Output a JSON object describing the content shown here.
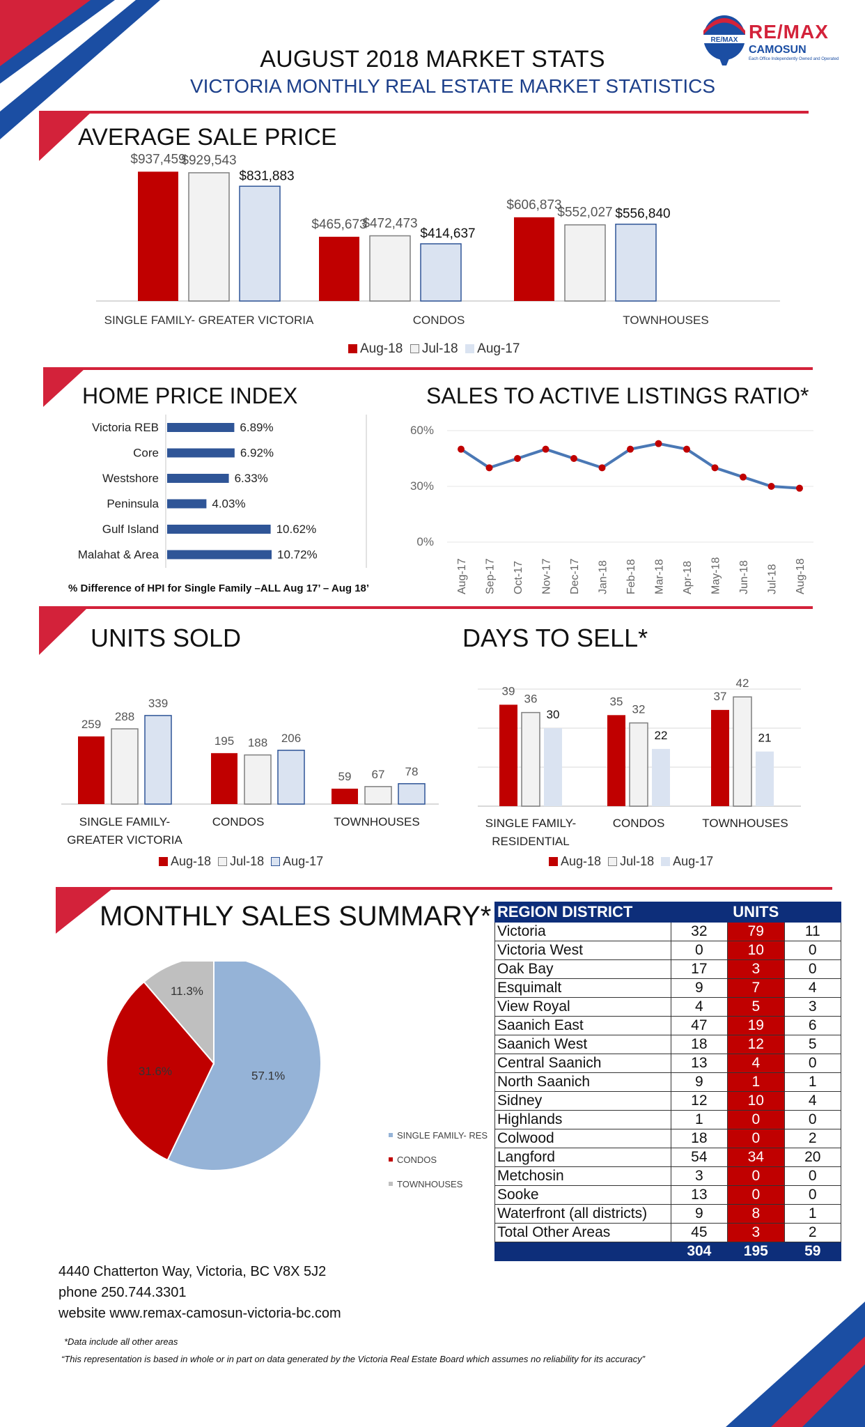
{
  "header": {
    "title": "AUGUST 2018 MARKET STATS",
    "subtitle": "VICTORIA MONTHLY REAL ESTATE MARKET STATISTICS",
    "logo_text": "RE/MAX",
    "logo_brand": "RE/MAX",
    "logo_sub": "CAMOSUN",
    "logo_tag": "Each Office Independently Owned and Operated"
  },
  "colors": {
    "aug18": "#c00000",
    "jul18": "#f2f2f2",
    "aug17": "#dae3f1",
    "aug17_border": "#2f5597",
    "navy": "#0d2e7a",
    "accent_red": "#d3223a",
    "hpi_bar": "#2f5597",
    "line": "#4a78b5",
    "pie_single": "#95b3d7",
    "pie_condos": "#c00000",
    "pie_town": "#bfbfbf"
  },
  "legend": {
    "aug18": "Aug-18",
    "jul18": "Jul-18",
    "aug17": "Aug-17"
  },
  "sections": {
    "avg_price": "AVERAGE SALE PRICE",
    "hpi": "HOME PRICE INDEX",
    "ratio": "SALES TO ACTIVE LISTINGS RATIO*",
    "units": "UNITS SOLD",
    "days": "DAYS TO SELL*",
    "summary": "MONTHLY SALES SUMMARY*"
  },
  "chart_data": [
    {
      "type": "bar",
      "title": "AVERAGE SALE PRICE",
      "categories": [
        "SINGLE FAMILY- GREATER VICTORIA",
        "CONDOS",
        "TOWNHOUSES"
      ],
      "series": [
        {
          "name": "Aug-18",
          "values": [
            937459,
            465673,
            606873
          ],
          "labels": [
            "$937,459",
            "$465,673",
            "$606,873"
          ]
        },
        {
          "name": "Jul-18",
          "values": [
            929543,
            472473,
            552027
          ],
          "labels": [
            "$929,543",
            "$472,473",
            "$552,027"
          ]
        },
        {
          "name": "Aug-17",
          "values": [
            831883,
            414637,
            556840
          ],
          "labels": [
            "$831,883",
            "$414,637",
            "$556,840"
          ]
        }
      ],
      "ylim": [
        0,
        1000000
      ]
    },
    {
      "type": "bar",
      "title": "HOME PRICE INDEX",
      "orientation": "horizontal",
      "categories": [
        "Victoria REB",
        "Core",
        "Westshore",
        "Peninsula",
        "Gulf Island",
        "Malahat & Area"
      ],
      "values": [
        6.89,
        6.92,
        6.33,
        4.03,
        10.62,
        10.72
      ],
      "labels": [
        "6.89%",
        "6.92%",
        "6.33%",
        "4.03%",
        "10.62%",
        "10.72%"
      ],
      "note": "% Difference of HPI for Single Family –ALL Aug 17’ – Aug 18’"
    },
    {
      "type": "line",
      "title": "SALES TO ACTIVE LISTINGS RATIO*",
      "x": [
        "Aug-17",
        "Sep-17",
        "Oct-17",
        "Nov-17",
        "Dec-17",
        "Jan-18",
        "Feb-18",
        "Mar-18",
        "Apr-18",
        "May-18",
        "Jun-18",
        "Jul-18",
        "Aug-18"
      ],
      "values": [
        50,
        40,
        45,
        50,
        45,
        40,
        50,
        53,
        50,
        40,
        35,
        30,
        29
      ],
      "yticks": [
        "0%",
        "30%",
        "60%"
      ],
      "ylim": [
        0,
        60
      ]
    },
    {
      "type": "bar",
      "title": "UNITS SOLD",
      "categories": [
        "SINGLE FAMILY-\nGREATER VICTORIA",
        "CONDOS",
        "TOWNHOUSES"
      ],
      "category_lines": [
        [
          "SINGLE FAMILY-",
          "GREATER VICTORIA"
        ],
        [
          "CONDOS"
        ],
        [
          "TOWNHOUSES"
        ]
      ],
      "series": [
        {
          "name": "Aug-18",
          "values": [
            259,
            195,
            59
          ]
        },
        {
          "name": "Jul-18",
          "values": [
            288,
            188,
            67
          ]
        },
        {
          "name": "Aug-17",
          "values": [
            339,
            206,
            78
          ]
        }
      ],
      "ylim": [
        0,
        400
      ]
    },
    {
      "type": "bar",
      "title": "DAYS TO SELL*",
      "categories": [
        "SINGLE FAMILY-\nRESIDENTIAL",
        "CONDOS",
        "TOWNHOUSES"
      ],
      "category_lines": [
        [
          "SINGLE FAMILY-",
          "RESIDENTIAL"
        ],
        [
          "CONDOS"
        ],
        [
          "TOWNHOUSES"
        ]
      ],
      "series": [
        {
          "name": "Aug-18",
          "values": [
            39,
            35,
            37
          ]
        },
        {
          "name": "Jul-18",
          "values": [
            36,
            32,
            42
          ]
        },
        {
          "name": "Aug-17",
          "values": [
            30,
            22,
            21
          ]
        }
      ],
      "ylim": [
        0,
        45
      ]
    },
    {
      "type": "pie",
      "title": "MONTHLY SALES SUMMARY*",
      "labels": [
        "SINGLE FAMILY- RES",
        "CONDOS",
        "TOWNHOUSES"
      ],
      "values": [
        57.1,
        31.6,
        11.3
      ],
      "value_labels": [
        "57.1%",
        "31.6%",
        "11.3%"
      ]
    },
    {
      "type": "table",
      "headers": [
        "REGION DISTRICT",
        "UNITS"
      ],
      "rows": [
        [
          "Victoria",
          "32",
          "79",
          "11"
        ],
        [
          "Victoria West",
          "0",
          "10",
          "0"
        ],
        [
          "Oak Bay",
          "17",
          "3",
          "0"
        ],
        [
          "Esquimalt",
          "9",
          "7",
          "4"
        ],
        [
          "View Royal",
          "4",
          "5",
          "3"
        ],
        [
          "Saanich East",
          "47",
          "19",
          "6"
        ],
        [
          "Saanich West",
          "18",
          "12",
          "5"
        ],
        [
          "Central Saanich",
          "13",
          "4",
          "0"
        ],
        [
          "North Saanich",
          "9",
          "1",
          "1"
        ],
        [
          "Sidney",
          "12",
          "10",
          "4"
        ],
        [
          "Highlands",
          "1",
          "0",
          "0"
        ],
        [
          "Colwood",
          "18",
          "0",
          "2"
        ],
        [
          "Langford",
          "54",
          "34",
          "20"
        ],
        [
          "Metchosin",
          "3",
          "0",
          "0"
        ],
        [
          "Sooke",
          "13",
          "0",
          "0"
        ],
        [
          "Waterfront (all districts)",
          "9",
          "8",
          "1"
        ],
        [
          "Total Other Areas",
          "45",
          "3",
          "2"
        ]
      ],
      "totals": [
        "304",
        "195",
        "59"
      ]
    }
  ],
  "footer": {
    "address": "4440 Chatterton Way, Victoria, BC V8X 5J2",
    "phone": "phone 250.744.3301",
    "website": "website www.remax-camosun-victoria-bc.com",
    "note1": "*Data include all other areas",
    "note2": "“This representation is based in whole or in part on data generated by the Victoria Real Estate Board which assumes no reliability  for its accuracy”"
  }
}
